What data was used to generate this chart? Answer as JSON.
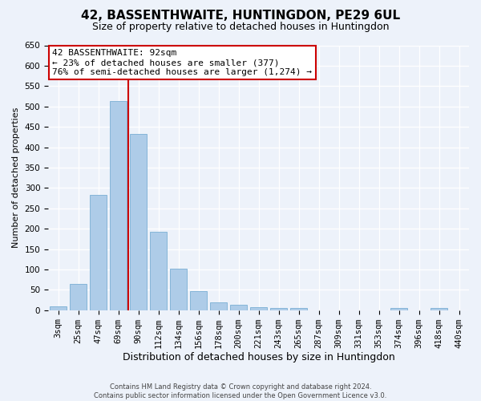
{
  "title": "42, BASSENTHWAITE, HUNTINGDON, PE29 6UL",
  "subtitle": "Size of property relative to detached houses in Huntingdon",
  "xlabel": "Distribution of detached houses by size in Huntingdon",
  "ylabel": "Number of detached properties",
  "categories": [
    "3sqm",
    "25sqm",
    "47sqm",
    "69sqm",
    "90sqm",
    "112sqm",
    "134sqm",
    "156sqm",
    "178sqm",
    "200sqm",
    "221sqm",
    "243sqm",
    "265sqm",
    "287sqm",
    "309sqm",
    "331sqm",
    "353sqm",
    "374sqm",
    "396sqm",
    "418sqm",
    "440sqm"
  ],
  "values": [
    10,
    65,
    283,
    513,
    432,
    192,
    102,
    46,
    20,
    13,
    8,
    5,
    5,
    0,
    0,
    0,
    0,
    6,
    0,
    6,
    0
  ],
  "bar_color": "#aecce8",
  "bar_edge_color": "#7aafd4",
  "vline_color": "#cc0000",
  "vline_x": 3.5,
  "annotation_line1": "42 BASSENTHWAITE: 92sqm",
  "annotation_line2": "← 23% of detached houses are smaller (377)",
  "annotation_line3": "76% of semi-detached houses are larger (1,274) →",
  "annotation_box_facecolor": "#ffffff",
  "annotation_box_edgecolor": "#cc0000",
  "ylim": [
    0,
    650
  ],
  "yticks": [
    0,
    50,
    100,
    150,
    200,
    250,
    300,
    350,
    400,
    450,
    500,
    550,
    600,
    650
  ],
  "title_fontsize": 11,
  "subtitle_fontsize": 9,
  "xlabel_fontsize": 9,
  "ylabel_fontsize": 8,
  "tick_fontsize": 7.5,
  "annotation_fontsize": 8,
  "footer1": "Contains HM Land Registry data © Crown copyright and database right 2024.",
  "footer2": "Contains public sector information licensed under the Open Government Licence v3.0.",
  "background_color": "#edf2fa",
  "grid_color": "#ffffff"
}
